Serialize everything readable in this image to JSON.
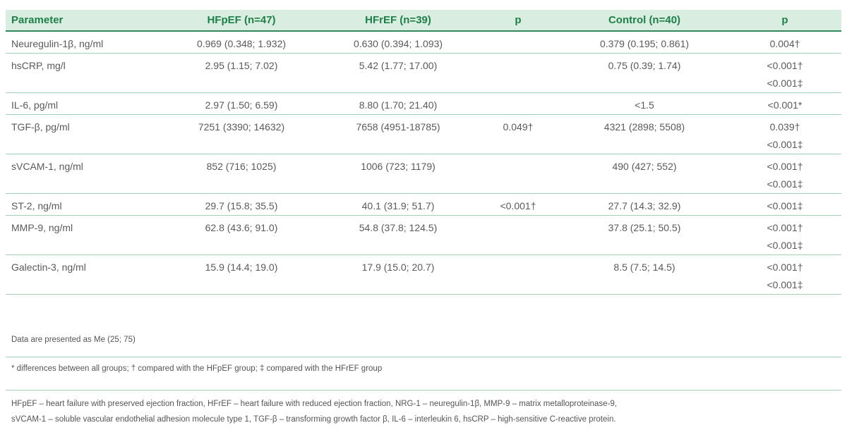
{
  "headers": [
    "Parameter",
    "HFpEF (n=47)",
    "HFrEF (n=39)",
    "p",
    "Control (n=40)",
    "p"
  ],
  "rows": [
    {
      "parameter": "Neuregulin-1β, ng/ml",
      "hfpef": "0.969 (0.348; 1.932)",
      "hfref": "0.630 (0.394; 1.093)",
      "p1": "",
      "control": "0.379 (0.195; 0.861)",
      "p2": [
        "0.004†"
      ]
    },
    {
      "parameter": "hsCRP, mg/l",
      "hfpef": "2.95 (1.15; 7.02)",
      "hfref": "5.42 (1.77; 17.00)",
      "p1": "",
      "control": "0.75 (0.39; 1.74)",
      "p2": [
        "<0.001†",
        "<0.001‡"
      ]
    },
    {
      "parameter": "IL-6, pg/ml",
      "hfpef": "2.97 (1.50; 6.59)",
      "hfref": "8.80 (1.70; 21.40)",
      "p1": "",
      "control": "<1.5",
      "p2": [
        "<0.001*"
      ]
    },
    {
      "parameter": "TGF-β, pg/ml",
      "hfpef": "7251 (3390; 14632)",
      "hfref": "7658 (4951-18785)",
      "p1": "0.049†",
      "control": "4321 (2898; 5508)",
      "p2": [
        "0.039†",
        "<0.001‡"
      ]
    },
    {
      "parameter": "sVCAM-1, ng/ml",
      "hfpef": "852 (716; 1025)",
      "hfref": "1006 (723; 1179)",
      "p1": "",
      "control": "490 (427; 552)",
      "p2": [
        "<0.001†",
        "<0.001‡"
      ]
    },
    {
      "parameter": "ST-2, ng/ml",
      "hfpef": "29.7 (15.8; 35.5)",
      "hfref": "40.1 (31.9; 51.7)",
      "p1": "<0.001†",
      "control": "27.7 (14.3; 32.9)",
      "p2": [
        "<0.001‡"
      ]
    },
    {
      "parameter": "MMP-9, ng/ml",
      "hfpef": "62.8 (43.6; 91.0)",
      "hfref": "54.8 (37.8; 124.5)",
      "p1": "",
      "control": "37.8 (25.1; 50.5)",
      "p2": [
        "<0.001†",
        "<0.001‡"
      ]
    },
    {
      "parameter": "Galectin-3, ng/ml",
      "hfpef": "15.9 (14.4; 19.0)",
      "hfref": "17.9 (15.0; 20.7)",
      "p1": "",
      "control": "8.5 (7.5; 14.5)",
      "p2": [
        "<0.001†",
        "<0.001‡"
      ]
    }
  ],
  "notes": {
    "data_presented": "Data are presented as Me (25; 75)",
    "symbols": "* differences between all groups; † compared with the HFpEF group; ‡ compared with the HFrEF group",
    "abbreviations_line1": "HFpEF – heart failure with preserved ejection fraction, HFrEF – heart failure with reduced ejection fraction, NRG-1 – neuregulin-1β, MMP-9 – matrix metalloproteinase-9,",
    "abbreviations_line2": "sVCAM-1 – soluble vascular endothelial adhesion molecule type 1, TGF-β – transforming growth factor β, IL-6 – interleukin 6, hsCRP – high-sensitive C-reactive protein."
  },
  "colors": {
    "header_background": "#d9ede0",
    "header_text": "#1e8049",
    "rule_green": "#2e8a5c",
    "row_divider": "#9fcfb4",
    "body_text": "#5a5a5a"
  }
}
